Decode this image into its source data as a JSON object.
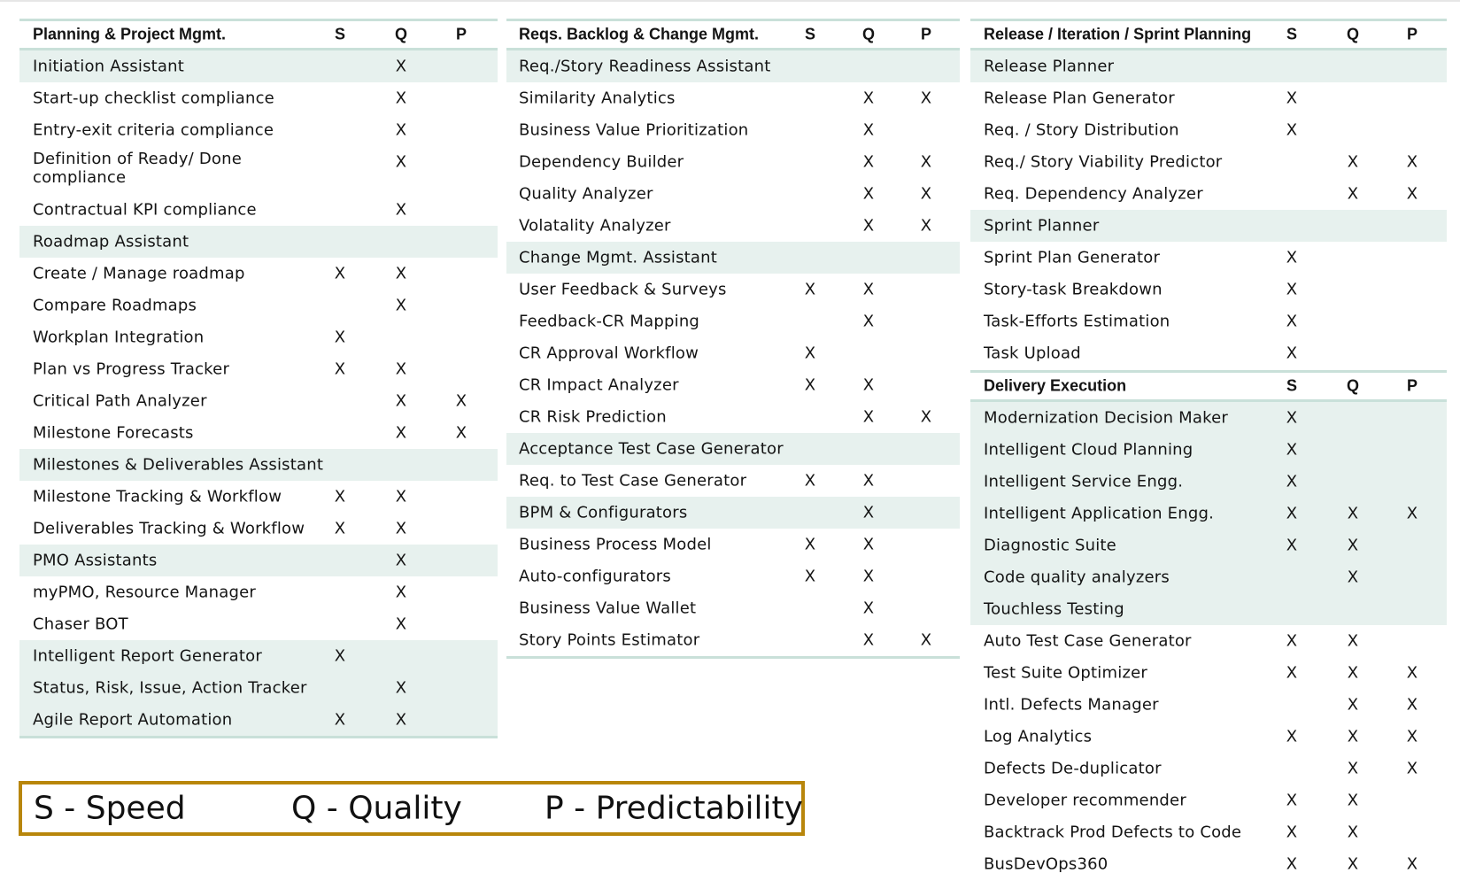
{
  "columns": [
    "S",
    "Q",
    "P"
  ],
  "legend": {
    "s": "S - Speed",
    "q": "Q - Quality",
    "p": "P - Predictability"
  },
  "sections": [
    {
      "title": "Planning & Project Mgmt.",
      "rows": [
        {
          "label": "Initiation Assistant",
          "hl": true,
          "s": "",
          "q": "X",
          "p": ""
        },
        {
          "label": "Start-up checklist compliance",
          "hl": false,
          "s": "",
          "q": "X",
          "p": ""
        },
        {
          "label": "Entry-exit criteria compliance",
          "hl": false,
          "s": "",
          "q": "X",
          "p": ""
        },
        {
          "label": "Definition of Ready/ Done compliance",
          "hl": false,
          "s": "",
          "q": "X",
          "p": ""
        },
        {
          "label": "Contractual KPI compliance",
          "hl": false,
          "s": "",
          "q": "X",
          "p": ""
        },
        {
          "label": "Roadmap Assistant",
          "hl": true,
          "s": "",
          "q": "",
          "p": ""
        },
        {
          "label": "Create / Manage roadmap",
          "hl": false,
          "s": "X",
          "q": "X",
          "p": ""
        },
        {
          "label": "Compare Roadmaps",
          "hl": false,
          "s": "",
          "q": "X",
          "p": ""
        },
        {
          "label": "Workplan Integration",
          "hl": false,
          "s": "X",
          "q": "",
          "p": ""
        },
        {
          "label": "Plan vs Progress Tracker",
          "hl": false,
          "s": "X",
          "q": "X",
          "p": ""
        },
        {
          "label": "Critical Path Analyzer",
          "hl": false,
          "s": "",
          "q": "X",
          "p": "X"
        },
        {
          "label": "Milestone Forecasts",
          "hl": false,
          "s": "",
          "q": "X",
          "p": "X"
        },
        {
          "label": "Milestones & Deliverables Assistant",
          "hl": true,
          "s": "",
          "q": "",
          "p": ""
        },
        {
          "label": "Milestone Tracking & Workflow",
          "hl": false,
          "s": "X",
          "q": "X",
          "p": ""
        },
        {
          "label": "Deliverables Tracking & Workflow",
          "hl": false,
          "s": "X",
          "q": "X",
          "p": ""
        },
        {
          "label": "PMO Assistants",
          "hl": true,
          "s": "",
          "q": "X",
          "p": ""
        },
        {
          "label": "myPMO, Resource Manager",
          "hl": false,
          "s": "",
          "q": "X",
          "p": ""
        },
        {
          "label": "Chaser BOT",
          "hl": false,
          "s": "",
          "q": "X",
          "p": ""
        },
        {
          "label": "Intelligent Report Generator",
          "hl": true,
          "s": "X",
          "q": "",
          "p": ""
        },
        {
          "label": "Status, Risk, Issue, Action Tracker",
          "hl": true,
          "s": "",
          "q": "X",
          "p": ""
        },
        {
          "label": "Agile Report Automation",
          "hl": true,
          "s": "X",
          "q": "X",
          "p": ""
        }
      ]
    },
    {
      "title": "Reqs. Backlog & Change Mgmt.",
      "rows": [
        {
          "label": "Req./Story Readiness Assistant",
          "hl": true,
          "s": "",
          "q": "",
          "p": ""
        },
        {
          "label": "Similarity Analytics",
          "hl": false,
          "s": "",
          "q": "X",
          "p": "X"
        },
        {
          "label": "Business Value Prioritization",
          "hl": false,
          "s": "",
          "q": "X",
          "p": ""
        },
        {
          "label": "Dependency Builder",
          "hl": false,
          "s": "",
          "q": "X",
          "p": "X"
        },
        {
          "label": "Quality Analyzer",
          "hl": false,
          "s": "",
          "q": "X",
          "p": "X"
        },
        {
          "label": "Volatality Analyzer",
          "hl": false,
          "s": "",
          "q": "X",
          "p": "X"
        },
        {
          "label": "Change Mgmt. Assistant",
          "hl": true,
          "s": "",
          "q": "",
          "p": ""
        },
        {
          "label": "User Feedback & Surveys",
          "hl": false,
          "s": "X",
          "q": "X",
          "p": ""
        },
        {
          "label": "Feedback-CR Mapping",
          "hl": false,
          "s": "",
          "q": "X",
          "p": ""
        },
        {
          "label": "CR Approval Workflow",
          "hl": false,
          "s": "X",
          "q": "",
          "p": ""
        },
        {
          "label": "CR Impact Analyzer",
          "hl": false,
          "s": "X",
          "q": "X",
          "p": ""
        },
        {
          "label": "CR Risk Prediction",
          "hl": false,
          "s": "",
          "q": "X",
          "p": "X"
        },
        {
          "label": "Acceptance Test Case Generator",
          "hl": true,
          "s": "",
          "q": "",
          "p": ""
        },
        {
          "label": "Req. to Test Case Generator",
          "hl": false,
          "s": "X",
          "q": "X",
          "p": ""
        },
        {
          "label": "BPM & Configurators",
          "hl": true,
          "s": "",
          "q": "X",
          "p": ""
        },
        {
          "label": "Business Process Model",
          "hl": false,
          "s": "X",
          "q": "X",
          "p": ""
        },
        {
          "label": "Auto-configurators",
          "hl": false,
          "s": "X",
          "q": "X",
          "p": ""
        },
        {
          "label": "Business Value Wallet",
          "hl": false,
          "s": "",
          "q": "X",
          "p": ""
        },
        {
          "label": "Story Points Estimator",
          "hl": false,
          "s": "",
          "q": "X",
          "p": "X"
        }
      ]
    },
    {
      "title": "Release / Iteration / Sprint Planning",
      "rows": [
        {
          "label": "Release Planner",
          "hl": true,
          "s": "",
          "q": "",
          "p": ""
        },
        {
          "label": "Release Plan Generator",
          "hl": false,
          "s": "X",
          "q": "",
          "p": ""
        },
        {
          "label": "Req. / Story Distribution",
          "hl": false,
          "s": "X",
          "q": "",
          "p": ""
        },
        {
          "label": "Req./ Story Viability Predictor",
          "hl": false,
          "s": "",
          "q": "X",
          "p": "X"
        },
        {
          "label": "Req. Dependency Analyzer",
          "hl": false,
          "s": "",
          "q": "X",
          "p": "X"
        },
        {
          "label": "Sprint Planner",
          "hl": true,
          "s": "",
          "q": "",
          "p": ""
        },
        {
          "label": "Sprint Plan Generator",
          "hl": false,
          "s": "X",
          "q": "",
          "p": ""
        },
        {
          "label": "Story-task Breakdown",
          "hl": false,
          "s": "X",
          "q": "",
          "p": ""
        },
        {
          "label": "Task-Efforts Estimation",
          "hl": false,
          "s": "X",
          "q": "",
          "p": ""
        },
        {
          "label": "Task Upload",
          "hl": false,
          "s": "X",
          "q": "",
          "p": ""
        }
      ]
    },
    {
      "title": "Delivery Execution",
      "rows": [
        {
          "label": "Modernization Decision Maker",
          "hl": true,
          "s": "X",
          "q": "",
          "p": ""
        },
        {
          "label": "Intelligent Cloud Planning",
          "hl": true,
          "s": "X",
          "q": "",
          "p": ""
        },
        {
          "label": "Intelligent Service Engg.",
          "hl": true,
          "s": "X",
          "q": "",
          "p": ""
        },
        {
          "label": "Intelligent Application Engg.",
          "hl": true,
          "s": "X",
          "q": "X",
          "p": "X"
        },
        {
          "label": "Diagnostic Suite",
          "hl": true,
          "s": "X",
          "q": "X",
          "p": ""
        },
        {
          "label": "Code quality analyzers",
          "hl": true,
          "s": "",
          "q": "X",
          "p": ""
        },
        {
          "label": "Touchless Testing",
          "hl": true,
          "s": "",
          "q": "",
          "p": ""
        },
        {
          "label": "Auto Test Case Generator",
          "hl": false,
          "s": "X",
          "q": "X",
          "p": ""
        },
        {
          "label": "Test Suite Optimizer",
          "hl": false,
          "s": "X",
          "q": "X",
          "p": "X"
        },
        {
          "label": "Intl. Defects Manager",
          "hl": false,
          "s": "",
          "q": "X",
          "p": "X"
        },
        {
          "label": "Log Analytics",
          "hl": false,
          "s": "X",
          "q": "X",
          "p": "X"
        },
        {
          "label": "Defects De-duplicator",
          "hl": false,
          "s": "",
          "q": "X",
          "p": "X"
        },
        {
          "label": "Developer recommender",
          "hl": false,
          "s": "X",
          "q": "X",
          "p": ""
        },
        {
          "label": "Backtrack Prod Defects to Code",
          "hl": false,
          "s": "X",
          "q": "X",
          "p": ""
        },
        {
          "label": "BusDevOps360",
          "hl": false,
          "s": "X",
          "q": "X",
          "p": "X"
        }
      ]
    }
  ]
}
